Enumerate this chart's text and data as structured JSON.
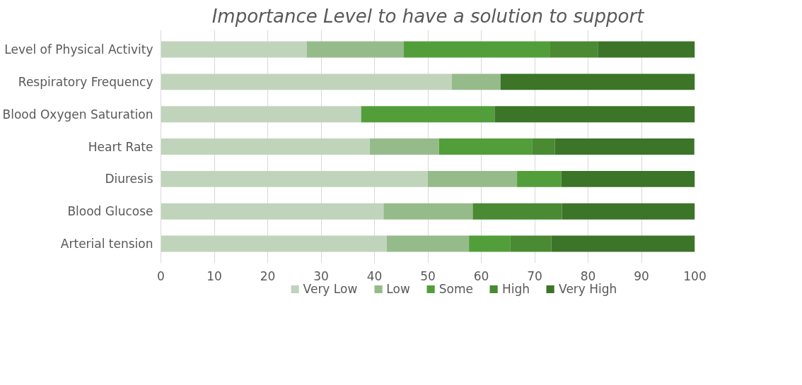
{
  "chart_data": {
    "type": "bar",
    "orientation": "horizontal",
    "stacked": true,
    "title": "Importance Level to have a solution to support",
    "categories": [
      "Level of Physical Activity",
      "Respiratory Frequency",
      "Blood Oxygen Saturation",
      "Heart Rate",
      "Diuresis",
      "Blood Glucose",
      "Arterial tension"
    ],
    "series": [
      {
        "name": "Very Low",
        "color": "#c0d4bc",
        "values": [
          27.3,
          54.5,
          37.5,
          39.1,
          50.0,
          41.7,
          42.3
        ]
      },
      {
        "name": "Low",
        "color": "#96bb8a",
        "values": [
          18.2,
          9.1,
          0,
          13.0,
          16.7,
          16.7,
          15.4
        ]
      },
      {
        "name": "Some",
        "color": "#529e3a",
        "values": [
          27.3,
          0,
          25.0,
          17.4,
          8.3,
          0,
          7.7
        ]
      },
      {
        "name": "High",
        "color": "#4a8a32",
        "values": [
          9.1,
          0,
          0,
          4.3,
          0,
          16.7,
          7.7
        ]
      },
      {
        "name": "Very High",
        "color": "#3c7428",
        "values": [
          18.2,
          36.4,
          37.5,
          26.1,
          25.0,
          25.0,
          26.9
        ]
      }
    ],
    "xlim": [
      0,
      100
    ],
    "xticks": [
      0,
      10,
      20,
      30,
      40,
      50,
      60,
      70,
      80,
      90,
      100
    ],
    "grid": "x",
    "legend": "bottom"
  }
}
